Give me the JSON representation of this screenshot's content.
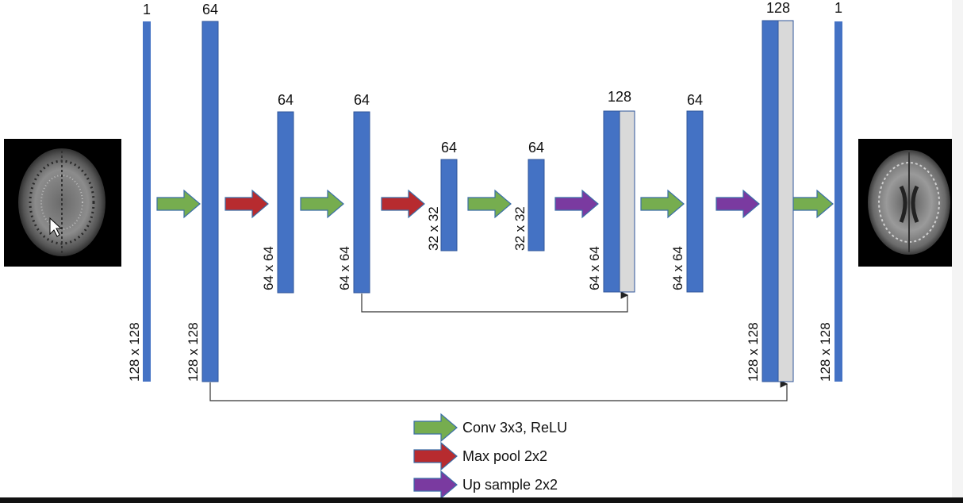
{
  "diagram": {
    "channel_labels": [
      "1",
      "64",
      "64",
      "64",
      "64",
      "64",
      "128",
      "64",
      "128",
      "1"
    ],
    "size_labels": [
      "128 x 128",
      "128 x 128",
      "64 x 64",
      "64 x 64",
      "32 x 32",
      "32 x 32",
      "64 x 64",
      "64 x 64",
      "128 x 128",
      "128 x 128"
    ],
    "legend": [
      {
        "label": "Conv 3x3, ReLU",
        "color": "#76ad4f"
      },
      {
        "label": "Max pool 2x2",
        "color": "#b72b2f"
      },
      {
        "label": "Up sample 2x2",
        "color": "#7a3aa0"
      }
    ],
    "colors": {
      "feature_map": "#4472c4",
      "copied_feature_map": "#d9d9d9",
      "conv_arrow": "#76ad4f",
      "pool_arrow": "#b72b2f",
      "upsample_arrow": "#7a3aa0"
    },
    "images": {
      "input": "brain-mri-input-image",
      "output": "brain-mri-output-image"
    }
  }
}
